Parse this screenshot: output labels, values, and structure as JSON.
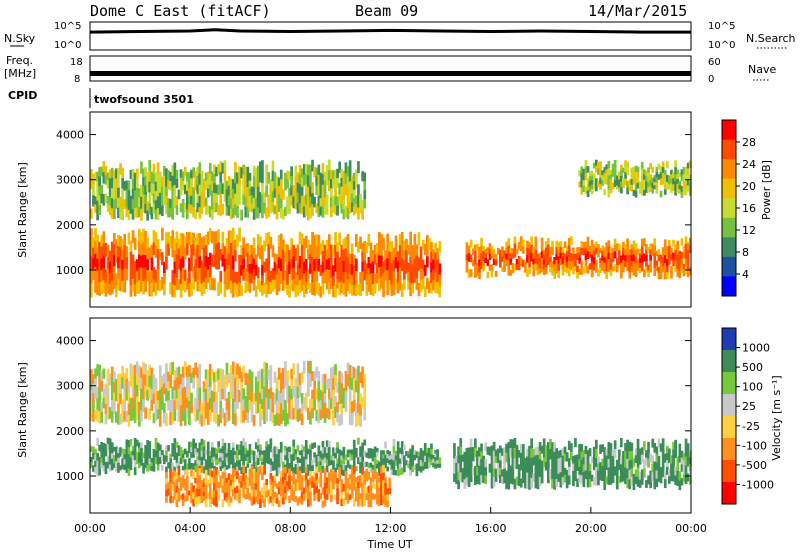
{
  "header": {
    "station": "Dome C East (fitACF)",
    "beam": "Beam 09",
    "date": "14/Mar/2015"
  },
  "chart_data": [
    {
      "type": "line",
      "panel": "sky-noise",
      "left_label": "N.Sky",
      "right_label": "N.Search",
      "ylabel_top": "10^5",
      "ylabel_bottom": "10^0",
      "ticks_left": [
        "10^5",
        "10^0"
      ],
      "ticks_right": [
        "10^5",
        "10^0"
      ],
      "ylim": [
        0,
        5
      ],
      "x": [
        0,
        2,
        4,
        5,
        6,
        8,
        10,
        12,
        14,
        16,
        18,
        20,
        22,
        24
      ],
      "series": [
        {
          "values": [
            3.2,
            3.3,
            3.4,
            3.6,
            3.4,
            3.3,
            3.4,
            3.5,
            3.4,
            3.3,
            3.4,
            3.3,
            3.2,
            3.2
          ]
        }
      ]
    },
    {
      "type": "line",
      "panel": "frequency-nave",
      "left_label_lines": [
        "Freq.",
        "[MHz]"
      ],
      "right_label": "Nave",
      "ticks_left": [
        "18",
        "8"
      ],
      "ticks_right": [
        "60",
        "0"
      ],
      "ylim_left": [
        8,
        18
      ],
      "ylim_right": [
        0,
        60
      ],
      "x": [
        0,
        24
      ],
      "series": [
        {
          "values": [
            11,
            11
          ]
        }
      ]
    },
    {
      "type": "table",
      "panel": "cpid",
      "label": "CPID",
      "values": [
        "twofsound 3501"
      ]
    },
    {
      "type": "heatmap",
      "panel": "power",
      "ylabel": "Slant Range [km]",
      "yticks": [
        "4000",
        "3000",
        "2000",
        "1000"
      ],
      "ylim": [
        180,
        4500
      ],
      "xlim": [
        0,
        24
      ],
      "colorbar": {
        "label": "Power [dB]",
        "ticks": [
          "28",
          "24",
          "20",
          "16",
          "12",
          "8",
          "4"
        ],
        "colors": [
          "#ff0000",
          "#ff4a00",
          "#ff8a00",
          "#f0c000",
          "#c8dc30",
          "#78c040",
          "#3c8c60",
          "#1e50a0",
          "#0000ff"
        ]
      },
      "bands": [
        {
          "x0": 0,
          "x1": 6,
          "r0": 500,
          "r1": 1800,
          "level": "high"
        },
        {
          "x0": 6,
          "x1": 14,
          "r0": 500,
          "r1": 1700,
          "level": "high"
        },
        {
          "x0": 15,
          "x1": 24,
          "r0": 900,
          "r1": 1600,
          "level": "high"
        },
        {
          "x0": 0,
          "x1": 11,
          "r0": 2200,
          "r1": 3300,
          "level": "mid"
        },
        {
          "x0": 19.5,
          "x1": 24,
          "r0": 2700,
          "r1": 3300,
          "level": "mid"
        }
      ]
    },
    {
      "type": "heatmap",
      "panel": "velocity",
      "ylabel": "Slant Range [km]",
      "yticks": [
        "4000",
        "3000",
        "2000",
        "1000"
      ],
      "ylim": [
        180,
        4500
      ],
      "xlim": [
        0,
        24
      ],
      "xticks": [
        "00:00",
        "04:00",
        "08:00",
        "12:00",
        "16:00",
        "20:00",
        "00:00"
      ],
      "xlabel": "Time UT",
      "colorbar": {
        "label": "Velocity [m s⁻¹]",
        "ticks": [
          "1000",
          "500",
          "100",
          "25",
          "-25",
          "-100",
          "-500",
          "-1000"
        ],
        "colors": [
          "#1e3cb4",
          "#3c8c5a",
          "#78c83c",
          "#c8c8c8",
          "#ffd040",
          "#ff9020",
          "#ff5000",
          "#ff0000"
        ]
      },
      "bands": [
        {
          "x0": 0,
          "x1": 14,
          "r0": 1100,
          "r1": 1700,
          "level": "positive"
        },
        {
          "x0": 3,
          "x1": 12,
          "r0": 400,
          "r1": 1100,
          "level": "negative"
        },
        {
          "x0": 14.5,
          "x1": 24,
          "r0": 800,
          "r1": 1700,
          "level": "positive"
        },
        {
          "x0": 0,
          "x1": 11,
          "r0": 2200,
          "r1": 3400,
          "level": "mixed"
        }
      ]
    }
  ]
}
